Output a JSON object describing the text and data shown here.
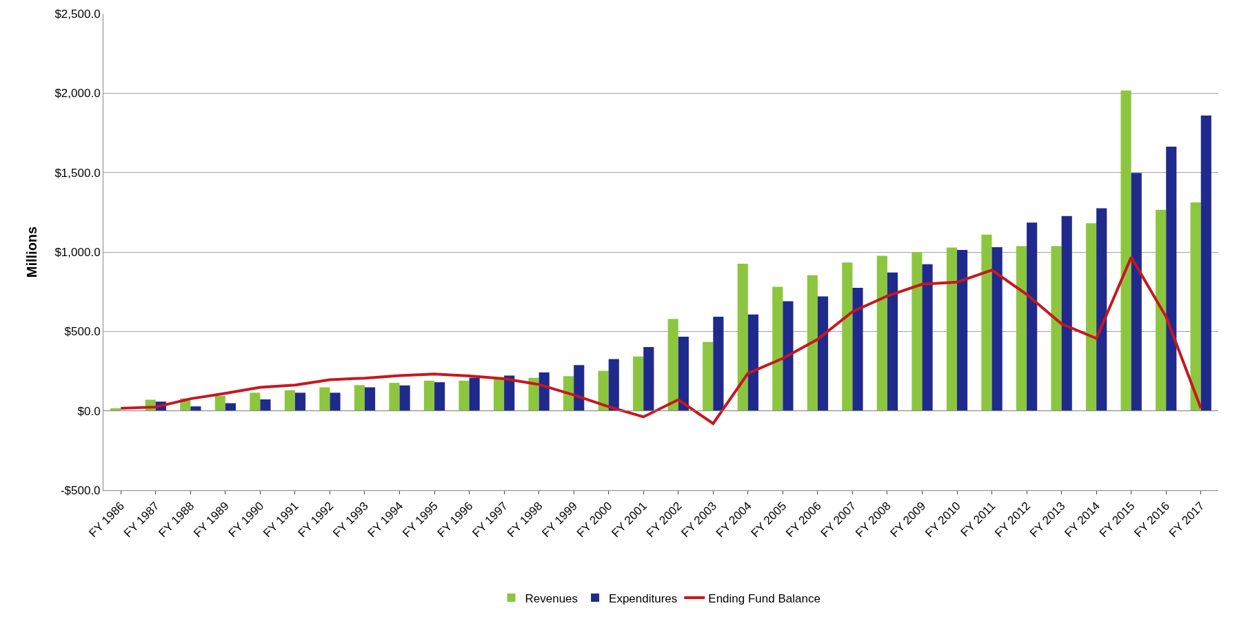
{
  "chart_data": {
    "type": "bar",
    "ylabel": "Millions",
    "categories": [
      "FY 1986",
      "FY 1987",
      "FY 1988",
      "FY 1989",
      "FY 1990",
      "FY 1991",
      "FY 1992",
      "FY 1993",
      "FY 1994",
      "FY 1995",
      "FY 1996",
      "FY 1997",
      "FY 1998",
      "FY 1999",
      "FY 2000",
      "FY 2001",
      "FY 2002",
      "FY 2003",
      "FY 2004",
      "FY 2005",
      "FY 2006",
      "FY 2007",
      "FY 2008",
      "FY 2009",
      "FY 2010",
      "FY 2011",
      "FY 2012",
      "FY 2013",
      "FY 2014",
      "FY 2015",
      "FY 2016",
      "FY 2017"
    ],
    "series": [
      {
        "name": "Revenues",
        "color": "#8cc63f",
        "values": [
          16,
          70,
          78,
          94,
          114,
          130,
          148,
          162,
          176,
          190,
          190,
          204,
          208,
          218,
          252,
          342,
          578,
          434,
          926,
          781,
          854,
          934,
          976,
          1000,
          1028,
          1109,
          1037,
          1037,
          1181,
          2017,
          1266,
          1312
        ]
      },
      {
        "name": "Expenditures",
        "color": "#1f2a8c",
        "values": [
          null,
          58,
          28,
          48,
          72,
          114,
          114,
          148,
          160,
          180,
          208,
          222,
          242,
          288,
          326,
          402,
          467,
          592,
          607,
          690,
          720,
          775,
          871,
          923,
          1013,
          1030,
          1185,
          1227,
          1275,
          1498,
          1663,
          1860
        ]
      },
      {
        "name": "Ending Fund Balance",
        "type": "line",
        "color": "#c8161d",
        "values": [
          16,
          24,
          76,
          110,
          148,
          162,
          196,
          206,
          222,
          232,
          220,
          202,
          166,
          100,
          26,
          -38,
          70,
          -80,
          236,
          330,
          450,
          624,
          723,
          797,
          810,
          886,
          733,
          548,
          456,
          967,
          592,
          17
        ]
      }
    ],
    "ylim": [
      -500,
      2500
    ],
    "yticks": [
      {
        "value": -500,
        "label": "-$500.0"
      },
      {
        "value": 0,
        "label": "$0.0"
      },
      {
        "value": 500,
        "label": "$500.0"
      },
      {
        "value": 1000,
        "label": "$1,000.0"
      },
      {
        "value": 1500,
        "label": "$1,500.0"
      },
      {
        "value": 2000,
        "label": "$2,000.0"
      },
      {
        "value": 2500,
        "label": "$2,500.0"
      }
    ],
    "grid": "y",
    "legend": "bottom",
    "marker": "none",
    "line_style": "solid"
  }
}
